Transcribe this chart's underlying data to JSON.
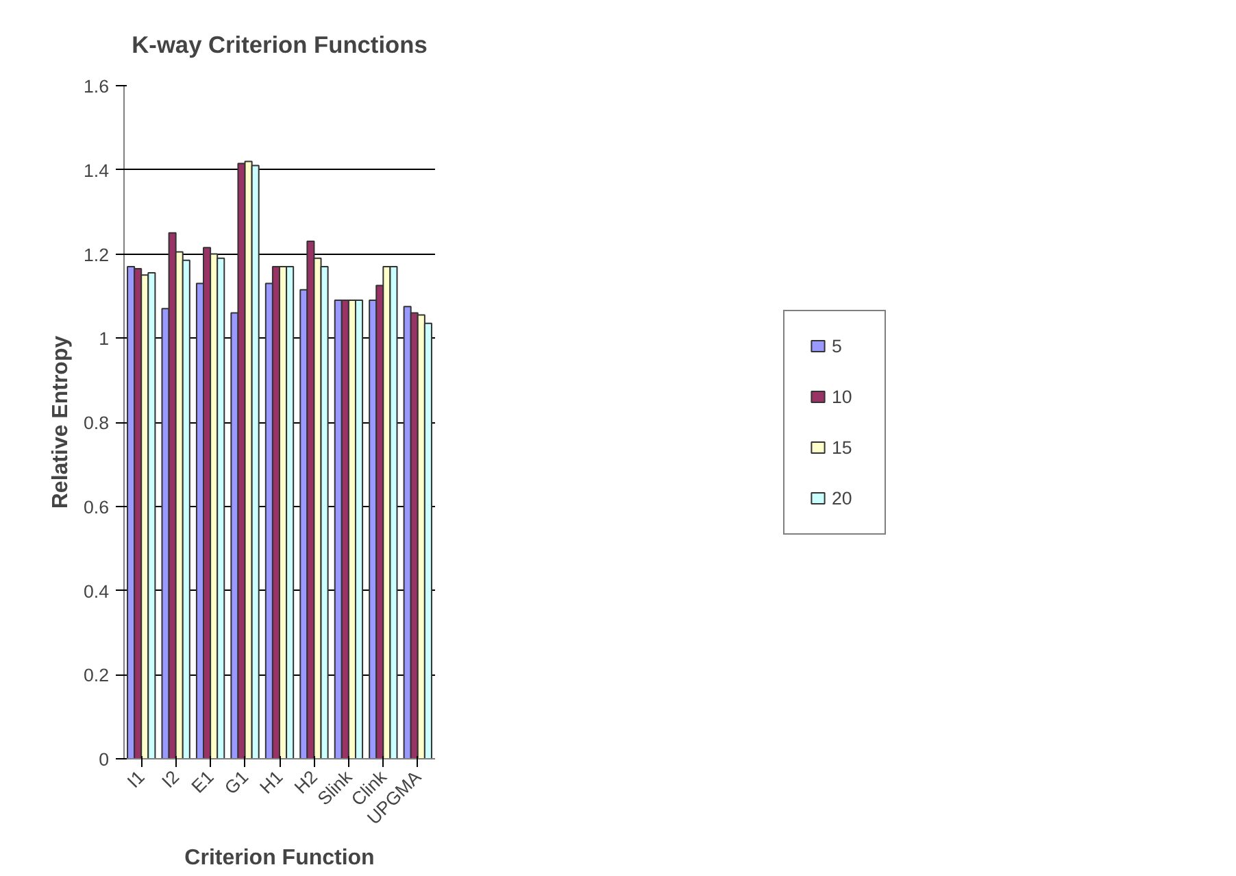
{
  "chart_data": {
    "type": "bar",
    "title": "K-way Criterion Functions",
    "xlabel": "Criterion Function",
    "ylabel": "Relative Entropy",
    "categories": [
      "I1",
      "I2",
      "E1",
      "G1",
      "H1",
      "H2",
      "Slink",
      "Clink",
      "UPGMA"
    ],
    "series": [
      {
        "name": "5",
        "color": "#9999ff",
        "values": [
          1.17,
          1.07,
          1.13,
          1.06,
          1.13,
          1.115,
          1.09,
          1.09,
          1.075
        ]
      },
      {
        "name": "10",
        "color": "#993366",
        "values": [
          1.165,
          1.25,
          1.215,
          1.415,
          1.17,
          1.23,
          1.09,
          1.125,
          1.06
        ]
      },
      {
        "name": "15",
        "color": "#ffffcc",
        "values": [
          1.15,
          1.205,
          1.2,
          1.42,
          1.17,
          1.19,
          1.09,
          1.17,
          1.055
        ]
      },
      {
        "name": "20",
        "color": "#ccffff",
        "values": [
          1.155,
          1.185,
          1.19,
          1.41,
          1.17,
          1.17,
          1.09,
          1.17,
          1.035
        ]
      }
    ],
    "ylim": [
      0,
      1.6
    ],
    "yticks": [
      {
        "value": 0,
        "label": "0"
      },
      {
        "value": 0.2,
        "label": "0.2"
      },
      {
        "value": 0.4,
        "label": "0.4"
      },
      {
        "value": 0.6,
        "label": "0.6"
      },
      {
        "value": 0.8,
        "label": "0.8"
      },
      {
        "value": 1,
        "label": "1"
      },
      {
        "value": 1.2,
        "label": "1.2"
      },
      {
        "value": 1.4,
        "label": "1.4"
      },
      {
        "value": 1.6,
        "label": "1.6"
      }
    ],
    "grid": "y",
    "legend": "right"
  }
}
